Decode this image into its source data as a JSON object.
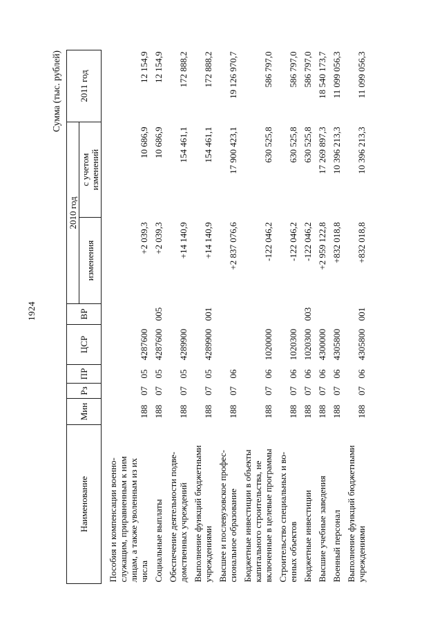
{
  "page": {
    "number": "1924",
    "unit_note": "Сумма (тыс. рублей)"
  },
  "table": {
    "headers": {
      "name": "Наименование",
      "min": "Мин",
      "rz": "Рз",
      "pr": "ПР",
      "csr": "ЦСР",
      "vr": "ВР",
      "y2010": "2010 год",
      "changes": "изменения",
      "with_changes": "с учетом\nизменений",
      "y2011": "2011 год"
    },
    "rows": [
      {
        "name": "Пособия и компенсации военно-\nслужащим, приравненным к ним\nлицам, а также уволенным из их\nчисла",
        "min": "188",
        "rz": "07",
        "pr": "05",
        "csr": "4287600",
        "vr": "",
        "change": "+2 039,3",
        "with_change": "10 686,9",
        "y2011": "12 154,9"
      },
      {
        "name": "Социальные выплаты",
        "min": "188",
        "rz": "07",
        "pr": "05",
        "csr": "4287600",
        "vr": "005",
        "change": "+2 039,3",
        "with_change": "10 686,9",
        "y2011": "12 154,9"
      },
      {
        "name": "Обеспечение деятельности подве-\nдомственных учреждений",
        "min": "188",
        "rz": "07",
        "pr": "05",
        "csr": "4289900",
        "vr": "",
        "change": "+14 140,9",
        "with_change": "154 461,1",
        "y2011": "172 888,2"
      },
      {
        "name": "Выполнение функций бюджетными\nучреждениями",
        "min": "188",
        "rz": "07",
        "pr": "05",
        "csr": "4289900",
        "vr": "001",
        "change": "+14 140,9",
        "with_change": "154 461,1",
        "y2011": "172 888,2"
      },
      {
        "name": "Высшее и послевузовское профес-\nсиональное образование",
        "min": "188",
        "rz": "07",
        "pr": "06",
        "csr": "",
        "vr": "",
        "change": "+2 837 076,6",
        "with_change": "17 900 423,1",
        "y2011": "19 126 970,7"
      },
      {
        "name": "Бюджетные инвестиции в объекты\nкапитального строительства, не\nвключенные в целевые программы",
        "min": "188",
        "rz": "07",
        "pr": "06",
        "csr": "1020000",
        "vr": "",
        "change": "-122 046,2",
        "with_change": "630 525,8",
        "y2011": "586 797,0"
      },
      {
        "name": "Строительство специальных и во-\nенных объектов",
        "min": "188",
        "rz": "07",
        "pr": "06",
        "csr": "1020300",
        "vr": "",
        "change": "-122 046,2",
        "with_change": "630 525,8",
        "y2011": "586 797,0"
      },
      {
        "name": "Бюджетные инвестиции",
        "min": "188",
        "rz": "07",
        "pr": "06",
        "csr": "1020300",
        "vr": "003",
        "change": "-122 046,2",
        "with_change": "630 525,8",
        "y2011": "586 797,0"
      },
      {
        "name": "Высшие учебные заведения",
        "min": "188",
        "rz": "07",
        "pr": "06",
        "csr": "4300000",
        "vr": "",
        "change": "+2 959 122,8",
        "with_change": "17 269 897,3",
        "y2011": "18 540 173,7"
      },
      {
        "name": "Военный персонал",
        "min": "188",
        "rz": "07",
        "pr": "06",
        "csr": "4305800",
        "vr": "",
        "change": "+832 018,8",
        "with_change": "10 396 213,3",
        "y2011": "11 099 056,3"
      },
      {
        "name": "Выполнение функций бюджетными\nучреждениями",
        "min": "188",
        "rz": "07",
        "pr": "06",
        "csr": "4305800",
        "vr": "001",
        "change": "+832 018,8",
        "with_change": "10 396 213,3",
        "y2011": "11 099 056,3"
      }
    ]
  }
}
